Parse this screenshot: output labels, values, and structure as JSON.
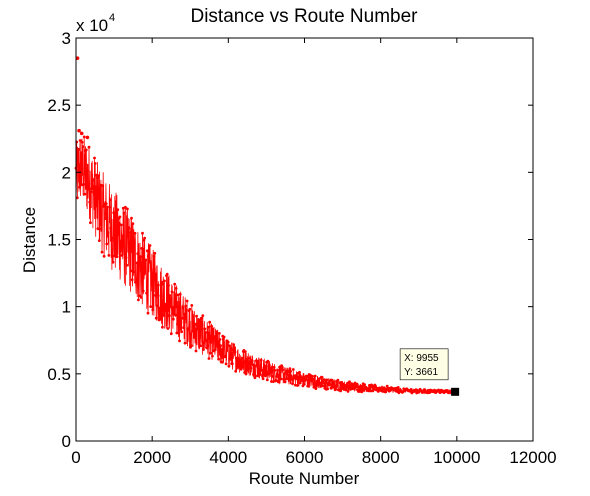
{
  "chart_data": {
    "type": "line",
    "title": "Distance vs Route Number",
    "xlabel": "Route Number",
    "ylabel": "Distance",
    "xlim": [
      0,
      12000
    ],
    "ylim": [
      0,
      30000
    ],
    "x_ticks": [
      0,
      2000,
      4000,
      6000,
      8000,
      10000,
      12000
    ],
    "x_tick_labels": [
      "0",
      "2000",
      "4000",
      "6000",
      "8000",
      "10000",
      "12000"
    ],
    "y_ticks": [
      0,
      5000,
      10000,
      15000,
      20000,
      25000,
      30000
    ],
    "y_tick_labels": [
      "0",
      "0.5",
      "1",
      "1.5",
      "2",
      "2.5",
      "3"
    ],
    "y_multiplier_base": "x 10",
    "y_multiplier_exp": "4",
    "grid": false,
    "series": [
      {
        "color": "#ff0000",
        "marker": "dot",
        "trend": [
          [
            0,
            19500
          ],
          [
            100,
            20400
          ],
          [
            200,
            20100
          ],
          [
            400,
            19000
          ],
          [
            600,
            17500
          ],
          [
            800,
            16500
          ],
          [
            1000,
            15600
          ],
          [
            1200,
            14800
          ],
          [
            1400,
            14100
          ],
          [
            1600,
            13300
          ],
          [
            1800,
            12500
          ],
          [
            2000,
            11800
          ],
          [
            2200,
            11000
          ],
          [
            2400,
            10400
          ],
          [
            2600,
            9700
          ],
          [
            2800,
            9200
          ],
          [
            3000,
            8600
          ],
          [
            3200,
            8100
          ],
          [
            3400,
            7700
          ],
          [
            3600,
            7300
          ],
          [
            3800,
            6900
          ],
          [
            4000,
            6500
          ],
          [
            4400,
            5900
          ],
          [
            4800,
            5500
          ],
          [
            5200,
            5100
          ],
          [
            5600,
            4800
          ],
          [
            6000,
            4550
          ],
          [
            6500,
            4300
          ],
          [
            7000,
            4100
          ],
          [
            7500,
            3980
          ],
          [
            8000,
            3880
          ],
          [
            8500,
            3780
          ],
          [
            9000,
            3720
          ],
          [
            9500,
            3690
          ],
          [
            9955,
            3661
          ]
        ],
        "spread": [
          [
            0,
            2600
          ],
          [
            500,
            3000
          ],
          [
            1000,
            3200
          ],
          [
            1500,
            3000
          ],
          [
            2000,
            2600
          ],
          [
            2500,
            2200
          ],
          [
            3000,
            1700
          ],
          [
            3500,
            1400
          ],
          [
            4000,
            1100
          ],
          [
            5000,
            800
          ],
          [
            6000,
            550
          ],
          [
            7000,
            400
          ],
          [
            8000,
            250
          ],
          [
            9000,
            150
          ],
          [
            9955,
            80
          ]
        ],
        "outliers": [
          [
            40,
            28500
          ],
          [
            80,
            23100
          ],
          [
            150,
            22900
          ],
          [
            300,
            22600
          ]
        ]
      }
    ],
    "annotations": [
      {
        "type": "datatip",
        "x": 9955,
        "y": 3661,
        "label_x": "X: 9955",
        "label_y": "Y: 3661"
      }
    ]
  }
}
